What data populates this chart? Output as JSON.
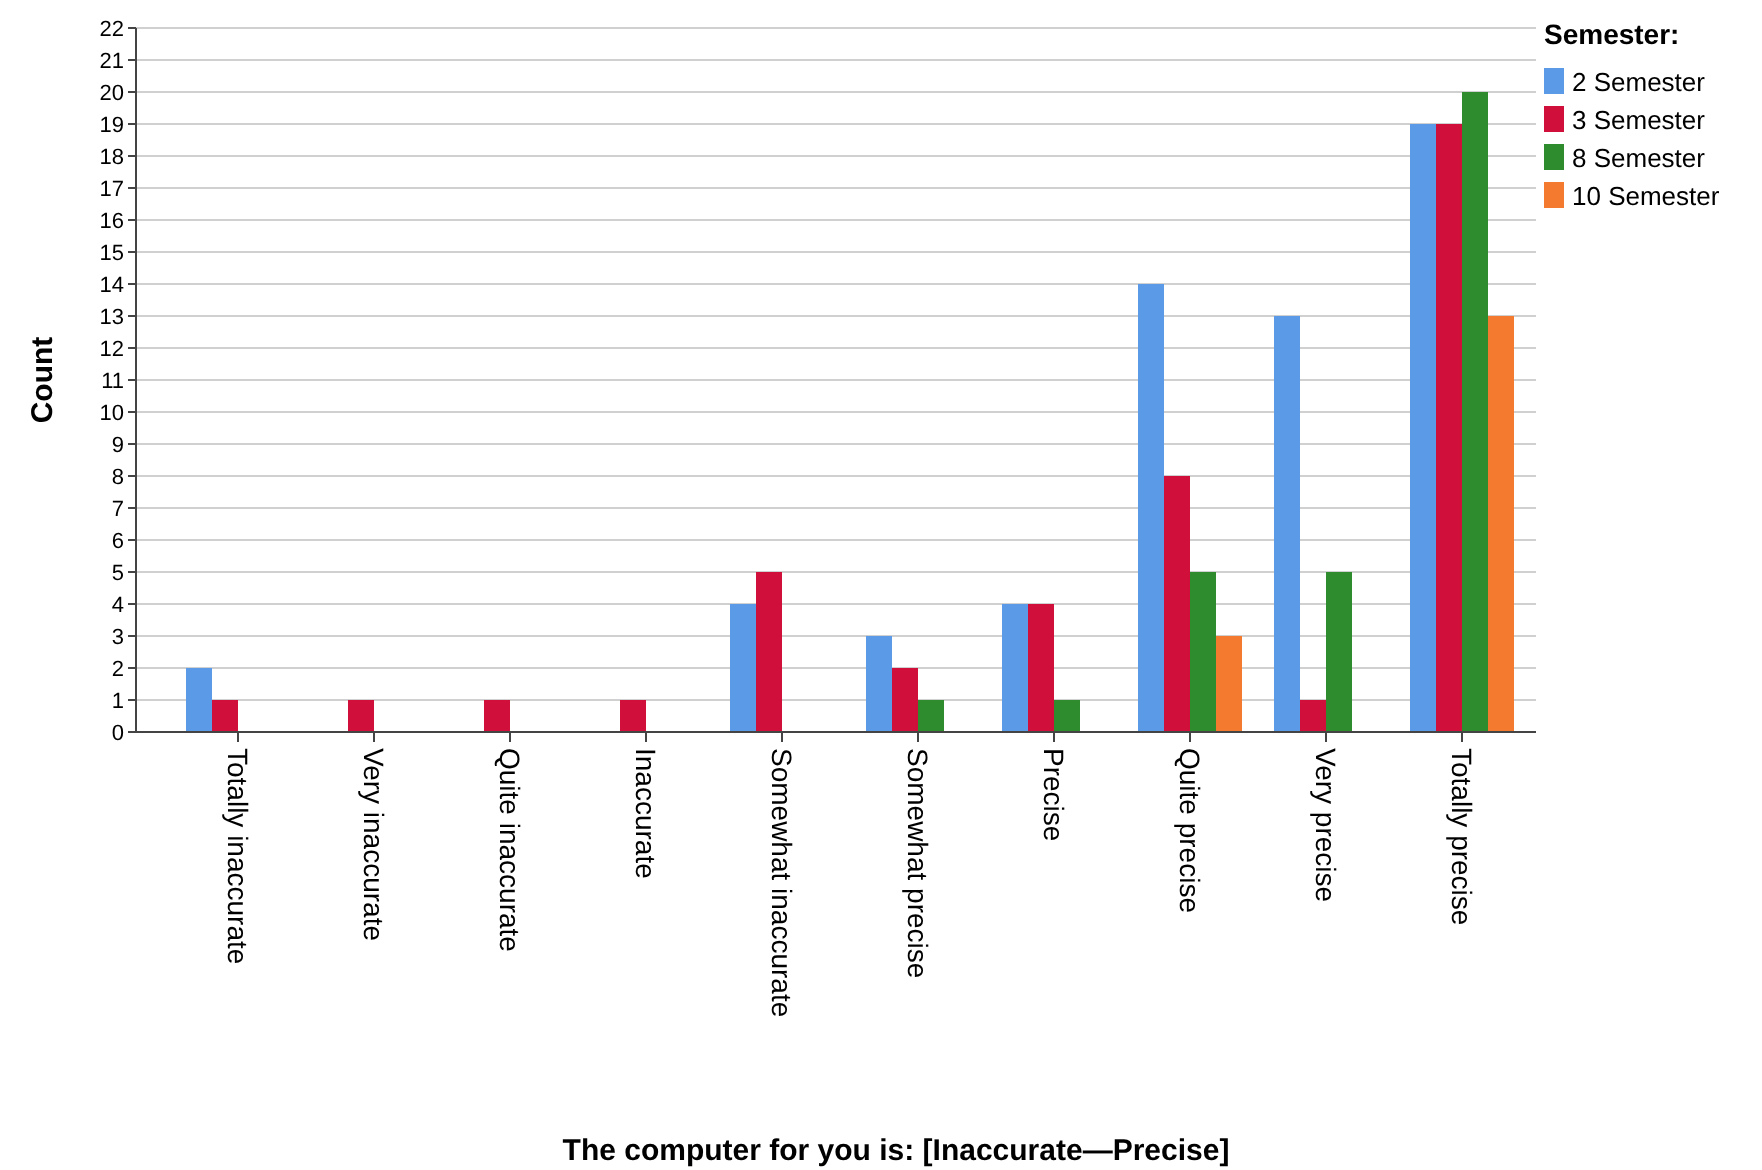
{
  "chart_data": {
    "type": "bar",
    "xlabel": "The computer for you is: [Inaccurate—Precise]",
    "ylabel": "Count",
    "legend_title": "Semester:",
    "legend": "right",
    "categories": [
      "Totally inaccurate",
      "Very inaccurate",
      "Quite inaccurate",
      "Inaccurate",
      "Somewhat inaccurate",
      "Somewhat precise",
      "Precise",
      "Quite precise",
      "Very precise",
      "Totally precise"
    ],
    "series": [
      {
        "name": "2 Semester",
        "color": "#5a9ae6",
        "values": [
          2,
          0,
          0,
          0,
          4,
          3,
          4,
          14,
          13,
          19
        ]
      },
      {
        "name": "3 Semester",
        "color": "#d0103a",
        "values": [
          1,
          1,
          1,
          1,
          5,
          2,
          4,
          8,
          1,
          19
        ]
      },
      {
        "name": "8 Semester",
        "color": "#2e8b2e",
        "values": [
          0,
          0,
          0,
          0,
          0,
          1,
          1,
          5,
          5,
          20
        ]
      },
      {
        "name": "10 Semester",
        "color": "#f47a30",
        "values": [
          0,
          0,
          0,
          0,
          0,
          0,
          0,
          3,
          0,
          13
        ]
      }
    ],
    "ylim": [
      0,
      22
    ],
    "yticks": [
      0,
      1,
      2,
      3,
      4,
      5,
      6,
      7,
      8,
      9,
      10,
      11,
      12,
      13,
      14,
      15,
      16,
      17,
      18,
      19,
      20,
      21,
      22
    ],
    "grid": "y"
  }
}
